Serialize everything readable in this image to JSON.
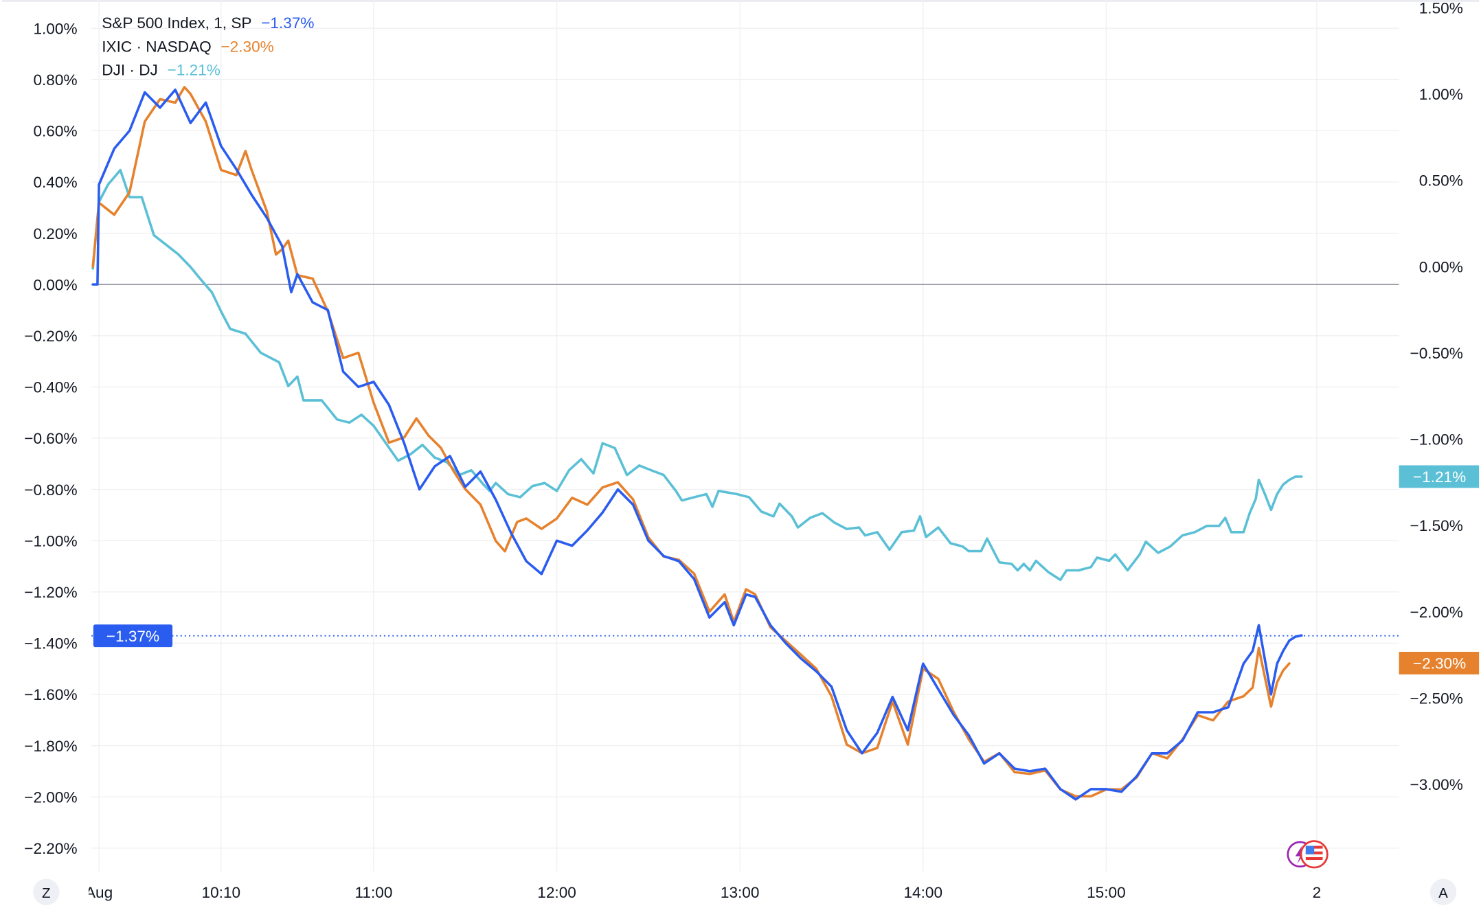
{
  "legend": [
    {
      "name": "S&P 500 Index, 1, SP",
      "change": "−1.37%"
    },
    {
      "name": "IXIC · NASDAQ",
      "change": "−2.30%"
    },
    {
      "name": "DJI · DJ",
      "change": "−1.21%"
    }
  ],
  "colors": {
    "sp": "#2a5cf0",
    "nasdaq": "#e6822e",
    "dji": "#5bc0d6",
    "zero_line": "#9598a1"
  },
  "badges": {
    "left": "−1.37%",
    "dji": "−1.21%",
    "nasdaq": "−2.30%"
  },
  "buttons": {
    "left": "Z",
    "right": "A"
  },
  "icons": [
    "lightning-icon",
    "us-flag-icon"
  ],
  "chart_data": {
    "type": "line",
    "title": "",
    "x_unit": "minutes after 09:30",
    "x_range": [
      -2,
      420
    ],
    "xlabel": "",
    "ylabel": "",
    "x_ticks": [
      {
        "t": 0,
        "label": "Aug"
      },
      {
        "t": 40,
        "label": "10:10"
      },
      {
        "t": 90,
        "label": "11:00"
      },
      {
        "t": 150,
        "label": "12:00"
      },
      {
        "t": 210,
        "label": "13:00"
      },
      {
        "t": 270,
        "label": "14:00"
      },
      {
        "t": 330,
        "label": "15:00"
      },
      {
        "t": 399,
        "label": "2"
      }
    ],
    "left_axis": {
      "range": [
        -2.3,
        1.1
      ],
      "ticks": [
        {
          "v": 1.0,
          "label": "1.00%"
        },
        {
          "v": 0.8,
          "label": "0.80%"
        },
        {
          "v": 0.6,
          "label": "0.60%"
        },
        {
          "v": 0.4,
          "label": "0.40%"
        },
        {
          "v": 0.2,
          "label": "0.20%"
        },
        {
          "v": 0.0,
          "label": "0.00%"
        },
        {
          "v": -0.2,
          "label": "−0.20%"
        },
        {
          "v": -0.4,
          "label": "−0.40%"
        },
        {
          "v": -0.6,
          "label": "−0.60%"
        },
        {
          "v": -0.8,
          "label": "−0.80%"
        },
        {
          "v": -1.0,
          "label": "−1.00%"
        },
        {
          "v": -1.2,
          "label": "−1.20%"
        },
        {
          "v": -1.4,
          "label": "−1.40%"
        },
        {
          "v": -1.6,
          "label": "−1.60%"
        },
        {
          "v": -1.8,
          "label": "−1.80%"
        },
        {
          "v": -2.0,
          "label": "−2.00%"
        },
        {
          "v": -2.2,
          "label": "−2.20%"
        }
      ]
    },
    "right_axis": {
      "range": [
        -3.4,
        1.55
      ],
      "ticks": [
        {
          "v": 1.5,
          "label": "1.50%"
        },
        {
          "v": 1.0,
          "label": "1.00%"
        },
        {
          "v": 0.5,
          "label": "0.50%"
        },
        {
          "v": 0.0,
          "label": "0.00%"
        },
        {
          "v": -0.5,
          "label": "−0.50%"
        },
        {
          "v": -1.0,
          "label": "−1.00%"
        },
        {
          "v": -1.5,
          "label": "−1.50%"
        },
        {
          "v": -2.0,
          "label": "−2.00%"
        },
        {
          "v": -2.5,
          "label": "−2.50%"
        },
        {
          "v": -3.0,
          "label": "−3.00%"
        }
      ]
    },
    "series": [
      {
        "name": "S&P 500 Index, 1, SP",
        "axis": "left",
        "last": -1.37,
        "t": [
          -2,
          -0.5,
          0,
          5,
          10,
          15,
          20,
          25,
          30,
          35,
          40,
          45,
          50,
          55,
          60,
          63,
          65,
          70,
          75,
          80,
          85,
          90,
          95,
          100,
          105,
          110,
          115,
          120,
          125,
          130,
          135,
          140,
          145,
          150,
          155,
          160,
          165,
          170,
          175,
          180,
          185,
          190,
          195,
          200,
          205,
          208,
          212,
          215,
          220,
          225,
          230,
          235,
          240,
          245,
          250,
          255,
          260,
          265,
          270,
          275,
          280,
          285,
          290,
          295,
          300,
          305,
          310,
          315,
          320,
          325,
          330,
          335,
          340,
          345,
          350,
          355,
          360,
          365,
          370,
          375,
          378,
          380,
          384,
          386,
          388,
          390,
          392,
          394
        ],
        "values": [
          0,
          0,
          0.39,
          0.53,
          0.6,
          0.75,
          0.69,
          0.76,
          0.63,
          0.71,
          0.54,
          0.45,
          0.35,
          0.26,
          0.15,
          -0.03,
          0.04,
          -0.07,
          -0.1,
          -0.34,
          -0.4,
          -0.38,
          -0.47,
          -0.62,
          -0.8,
          -0.71,
          -0.67,
          -0.79,
          -0.73,
          -0.84,
          -0.97,
          -1.08,
          -1.13,
          -1.0,
          -1.02,
          -0.96,
          -0.89,
          -0.8,
          -0.86,
          -1.0,
          -1.06,
          -1.08,
          -1.15,
          -1.3,
          -1.24,
          -1.33,
          -1.21,
          -1.22,
          -1.33,
          -1.4,
          -1.46,
          -1.51,
          -1.57,
          -1.74,
          -1.83,
          -1.75,
          -1.61,
          -1.74,
          -1.48,
          -1.58,
          -1.68,
          -1.76,
          -1.87,
          -1.83,
          -1.89,
          -1.9,
          -1.89,
          -1.97,
          -2.01,
          -1.97,
          -1.97,
          -1.98,
          -1.92,
          -1.83,
          -1.83,
          -1.78,
          -1.67,
          -1.67,
          -1.65,
          -1.48,
          -1.43,
          -1.33,
          -1.6,
          -1.48,
          -1.43,
          -1.39,
          -1.375,
          -1.37
        ]
      },
      {
        "name": "IXIC · NASDAQ",
        "axis": "right",
        "last": -2.3,
        "t": [
          -2,
          0,
          5,
          10,
          15,
          20,
          25,
          28,
          30,
          35,
          40,
          45,
          48,
          50,
          55,
          58,
          60,
          62,
          65,
          70,
          75,
          80,
          85,
          90,
          95,
          100,
          104,
          108,
          112,
          116,
          120,
          125,
          130,
          133,
          137,
          140,
          145,
          150,
          155,
          160,
          165,
          170,
          175,
          180,
          185,
          190,
          195,
          200,
          205,
          208,
          212,
          215,
          220,
          225,
          230,
          235,
          240,
          245,
          250,
          255,
          260,
          265,
          270,
          275,
          280,
          285,
          290,
          295,
          300,
          305,
          310,
          315,
          320,
          325,
          330,
          335,
          340,
          345,
          350,
          355,
          360,
          365,
          370,
          375,
          378,
          380,
          384,
          386,
          388,
          390
        ],
        "values": [
          0,
          0.37,
          0.3,
          0.43,
          0.84,
          0.97,
          0.95,
          1.04,
          1.0,
          0.84,
          0.56,
          0.53,
          0.67,
          0.56,
          0.32,
          0.07,
          0.1,
          0.15,
          -0.05,
          -0.07,
          -0.26,
          -0.53,
          -0.5,
          -0.79,
          -1.02,
          -0.99,
          -0.88,
          -0.98,
          -1.05,
          -1.18,
          -1.29,
          -1.38,
          -1.59,
          -1.65,
          -1.48,
          -1.46,
          -1.52,
          -1.46,
          -1.34,
          -1.38,
          -1.28,
          -1.25,
          -1.35,
          -1.57,
          -1.68,
          -1.7,
          -1.78,
          -2.0,
          -1.9,
          -2.06,
          -1.87,
          -1.9,
          -2.09,
          -2.17,
          -2.25,
          -2.33,
          -2.49,
          -2.77,
          -2.82,
          -2.79,
          -2.52,
          -2.77,
          -2.33,
          -2.39,
          -2.58,
          -2.74,
          -2.87,
          -2.82,
          -2.93,
          -2.94,
          -2.92,
          -3.03,
          -3.07,
          -3.07,
          -3.03,
          -3.03,
          -2.96,
          -2.82,
          -2.85,
          -2.74,
          -2.6,
          -2.63,
          -2.52,
          -2.49,
          -2.44,
          -2.21,
          -2.55,
          -2.41,
          -2.34,
          -2.3
        ]
      },
      {
        "name": "DJI · DJ",
        "axis": "own",
        "last": -1.21,
        "t": [
          -2,
          0,
          3,
          7,
          10,
          14,
          18,
          22,
          26,
          30,
          33,
          37,
          40,
          43,
          48,
          53,
          59,
          62,
          65,
          67,
          73,
          78,
          82,
          86,
          90,
          94,
          98,
          102,
          106,
          110,
          114,
          118,
          122,
          126,
          128,
          130,
          134,
          138,
          142,
          146,
          150,
          154,
          158,
          162,
          165,
          169,
          173,
          177,
          181,
          185,
          189,
          191,
          195,
          199,
          201,
          203,
          209,
          213,
          217,
          221,
          223,
          227,
          229,
          233,
          237,
          241,
          245,
          249,
          251,
          255,
          259,
          263,
          267,
          269,
          271,
          275,
          279,
          283,
          285,
          289,
          291,
          295,
          299,
          301,
          303,
          305,
          307,
          311,
          315,
          317,
          321,
          325,
          327,
          331,
          333,
          337,
          341,
          343,
          347,
          351,
          355,
          359,
          363,
          367,
          369,
          371,
          375,
          377,
          379,
          380,
          382,
          384,
          386,
          388,
          390,
          392,
          394
        ],
        "values": [
          0.1,
          0.52,
          0.63,
          0.72,
          0.55,
          0.55,
          0.31,
          0.25,
          0.19,
          0.11,
          0.04,
          -0.05,
          -0.17,
          -0.28,
          -0.31,
          -0.43,
          -0.49,
          -0.64,
          -0.58,
          -0.73,
          -0.73,
          -0.85,
          -0.87,
          -0.82,
          -0.89,
          -1.0,
          -1.11,
          -1.07,
          -1.01,
          -1.09,
          -1.12,
          -1.2,
          -1.17,
          -1.26,
          -1.3,
          -1.25,
          -1.32,
          -1.34,
          -1.27,
          -1.25,
          -1.3,
          -1.17,
          -1.1,
          -1.19,
          -1.0,
          -1.03,
          -1.2,
          -1.14,
          -1.17,
          -1.2,
          -1.3,
          -1.36,
          -1.34,
          -1.32,
          -1.4,
          -1.3,
          -1.32,
          -1.34,
          -1.43,
          -1.46,
          -1.38,
          -1.46,
          -1.53,
          -1.47,
          -1.44,
          -1.5,
          -1.54,
          -1.53,
          -1.58,
          -1.56,
          -1.67,
          -1.56,
          -1.55,
          -1.46,
          -1.59,
          -1.53,
          -1.63,
          -1.65,
          -1.68,
          -1.68,
          -1.6,
          -1.75,
          -1.76,
          -1.8,
          -1.76,
          -1.8,
          -1.74,
          -1.81,
          -1.86,
          -1.8,
          -1.8,
          -1.78,
          -1.72,
          -1.74,
          -1.7,
          -1.8,
          -1.7,
          -1.62,
          -1.69,
          -1.65,
          -1.58,
          -1.56,
          -1.52,
          -1.52,
          -1.47,
          -1.56,
          -1.56,
          -1.44,
          -1.35,
          -1.23,
          -1.32,
          -1.42,
          -1.32,
          -1.26,
          -1.23,
          -1.21,
          -1.21
        ]
      }
    ],
    "reference_line": {
      "series": "S&P 500 Index, 1, SP",
      "value": -1.37,
      "style": "dotted"
    },
    "grid": true,
    "legend_position": "top-left"
  }
}
